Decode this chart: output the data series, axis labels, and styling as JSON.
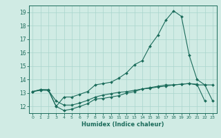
{
  "title": "",
  "xlabel": "Humidex (Indice chaleur)",
  "ylabel": "",
  "bg_color": "#d0ebe4",
  "grid_color": "#a8d5cc",
  "line_color": "#1a6b5a",
  "ylim": [
    11.5,
    19.5
  ],
  "xlim": [
    -0.5,
    23.5
  ],
  "x": [
    0,
    1,
    2,
    3,
    4,
    5,
    6,
    7,
    8,
    9,
    10,
    11,
    12,
    13,
    14,
    15,
    16,
    17,
    18,
    19,
    20,
    21,
    22,
    23
  ],
  "line1": [
    13.1,
    13.25,
    13.25,
    12.0,
    12.7,
    12.7,
    12.9,
    13.1,
    13.6,
    13.7,
    13.8,
    14.1,
    14.5,
    15.1,
    15.4,
    16.5,
    17.3,
    18.4,
    19.1,
    18.7,
    15.8,
    14.0,
    13.6,
    13.6
  ],
  "line2": [
    13.1,
    13.2,
    13.2,
    12.0,
    11.7,
    11.8,
    12.0,
    12.2,
    12.55,
    12.6,
    12.7,
    12.8,
    13.0,
    13.1,
    13.3,
    13.35,
    13.45,
    13.5,
    13.6,
    13.65,
    13.7,
    13.65,
    12.4,
    null
  ],
  "line3": [
    13.1,
    13.25,
    13.2,
    12.4,
    12.1,
    12.1,
    12.25,
    12.45,
    12.7,
    12.85,
    12.95,
    13.05,
    13.1,
    13.2,
    13.3,
    13.4,
    13.5,
    13.6,
    13.6,
    13.65,
    13.7,
    13.6,
    13.6,
    12.4
  ],
  "yticks": [
    12,
    13,
    14,
    15,
    16,
    17,
    18,
    19
  ],
  "xticks": [
    0,
    1,
    2,
    3,
    4,
    5,
    6,
    7,
    8,
    9,
    10,
    11,
    12,
    13,
    14,
    15,
    16,
    17,
    18,
    19,
    20,
    21,
    22,
    23
  ]
}
